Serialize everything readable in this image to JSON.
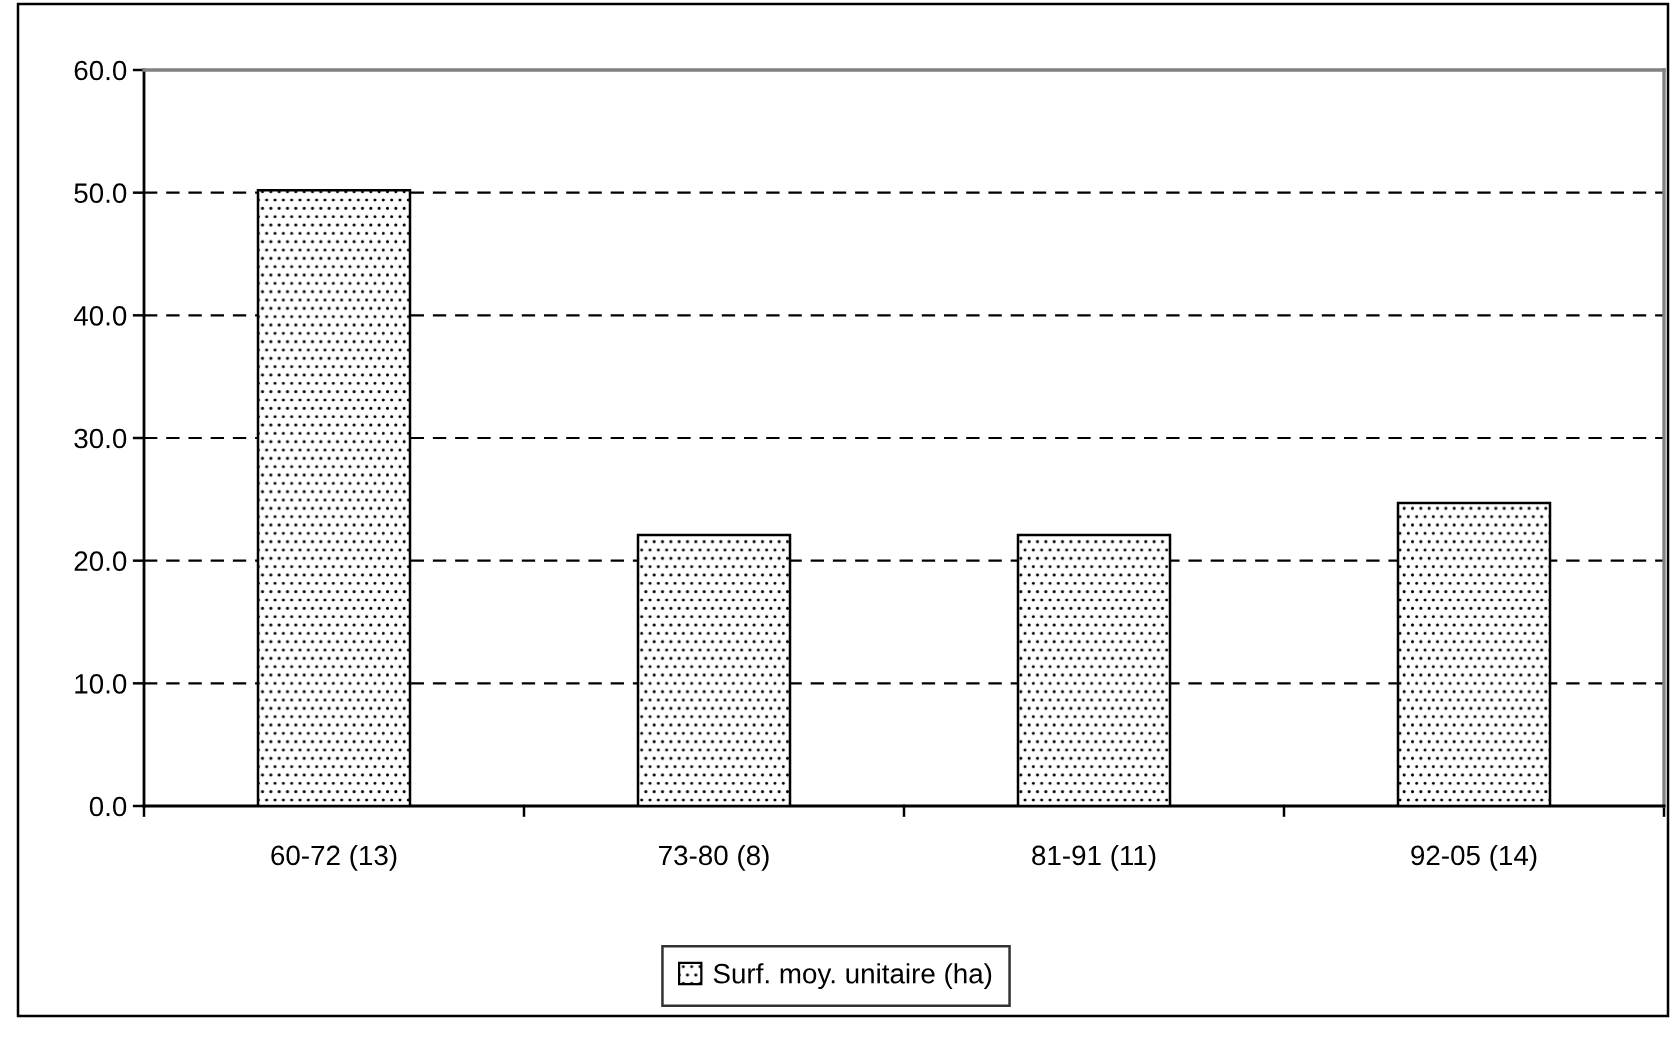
{
  "chart_data": {
    "type": "bar",
    "categories": [
      "60-72 (13)",
      "73-80 (8)",
      "81-91 (11)",
      "92-05 (14)"
    ],
    "series": [
      {
        "name": "Surf. moy. unitaire (ha)",
        "color": "#000000",
        "values": [
          50.2,
          22.1,
          22.1,
          24.7
        ]
      }
    ],
    "ylim": [
      0,
      60
    ],
    "yticks": [
      {
        "value": 0,
        "label": "0.0"
      },
      {
        "value": 10,
        "label": "10.0"
      },
      {
        "value": 20,
        "label": "20.0"
      },
      {
        "value": 30,
        "label": "30.0"
      },
      {
        "value": 40,
        "label": "40.0"
      },
      {
        "value": 50,
        "label": "50.0"
      },
      {
        "value": 60,
        "label": "60.0"
      }
    ],
    "grid": "y",
    "legend": "bottom"
  }
}
